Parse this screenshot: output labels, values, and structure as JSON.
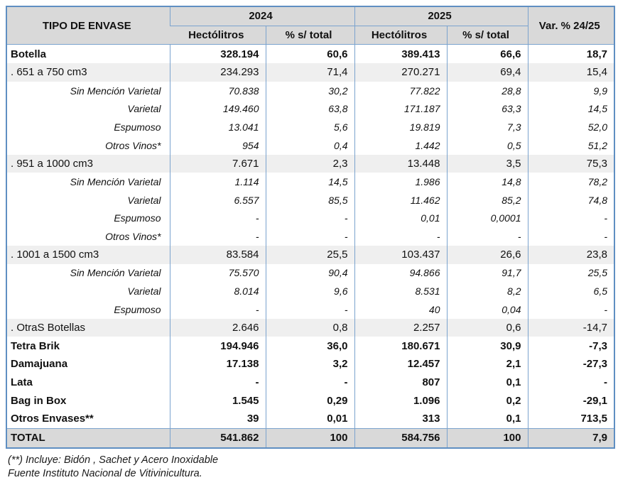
{
  "table": {
    "corner_header": "TIPO DE ENVASE",
    "year_groups": [
      {
        "label": "2024"
      },
      {
        "label": "2025"
      }
    ],
    "sub_headers": [
      "Hectólitros",
      "% s/ total"
    ],
    "var_header": "Var. %  24/25",
    "rows": [
      {
        "label": "Botella",
        "style": "main",
        "values": [
          "328.194",
          "60,6",
          "389.413",
          "66,6",
          "18,7"
        ]
      },
      {
        "label": ". 651 a 750 cm3",
        "style": "category",
        "values": [
          "234.293",
          "71,4",
          "270.271",
          "69,4",
          "15,4"
        ]
      },
      {
        "label": "Sin Mención Varietal",
        "style": "sub",
        "values": [
          "70.838",
          "30,2",
          "77.822",
          "28,8",
          "9,9"
        ]
      },
      {
        "label": "Varietal",
        "style": "sub",
        "values": [
          "149.460",
          "63,8",
          "171.187",
          "63,3",
          "14,5"
        ]
      },
      {
        "label": "Espumoso",
        "style": "sub",
        "values": [
          "13.041",
          "5,6",
          "19.819",
          "7,3",
          "52,0"
        ]
      },
      {
        "label": "Otros Vinos*",
        "style": "sub",
        "values": [
          "954",
          "0,4",
          "1.442",
          "0,5",
          "51,2"
        ]
      },
      {
        "label": ". 951 a 1000 cm3",
        "style": "category",
        "values": [
          "7.671",
          "2,3",
          "13.448",
          "3,5",
          "75,3"
        ]
      },
      {
        "label": "Sin Mención Varietal",
        "style": "sub",
        "values": [
          "1.114",
          "14,5",
          "1.986",
          "14,8",
          "78,2"
        ]
      },
      {
        "label": "Varietal",
        "style": "sub",
        "values": [
          "6.557",
          "85,5",
          "11.462",
          "85,2",
          "74,8"
        ]
      },
      {
        "label": "Espumoso",
        "style": "sub",
        "values": [
          "-",
          "-",
          "0,01",
          "0,0001",
          "-"
        ]
      },
      {
        "label": "Otros Vinos*",
        "style": "sub",
        "values": [
          "-",
          "-",
          "-",
          "-",
          "-"
        ]
      },
      {
        "label": ". 1001 a 1500 cm3",
        "style": "category",
        "values": [
          "83.584",
          "25,5",
          "103.437",
          "26,6",
          "23,8"
        ]
      },
      {
        "label": "Sin Mención Varietal",
        "style": "sub",
        "values": [
          "75.570",
          "90,4",
          "94.866",
          "91,7",
          "25,5"
        ]
      },
      {
        "label": "Varietal",
        "style": "sub",
        "values": [
          "8.014",
          "9,6",
          "8.531",
          "8,2",
          "6,5"
        ]
      },
      {
        "label": "Espumoso",
        "style": "sub",
        "values": [
          "-",
          "-",
          "40",
          "0,04",
          "-"
        ]
      },
      {
        "label": ". OtraS Botellas",
        "style": "category",
        "values": [
          "2.646",
          "0,8",
          "2.257",
          "0,6",
          "-14,7"
        ]
      },
      {
        "label": "Tetra Brik",
        "style": "main",
        "values": [
          "194.946",
          "36,0",
          "180.671",
          "30,9",
          "-7,3"
        ]
      },
      {
        "label": "Damajuana",
        "style": "main",
        "values": [
          "17.138",
          "3,2",
          "12.457",
          "2,1",
          "-27,3"
        ]
      },
      {
        "label": "Lata",
        "style": "main",
        "values": [
          "-",
          "-",
          "807",
          "0,1",
          "-"
        ]
      },
      {
        "label": "Bag in Box",
        "style": "main",
        "values": [
          "1.545",
          "0,29",
          "1.096",
          "0,2",
          "-29,1"
        ]
      },
      {
        "label": "Otros Envases**",
        "style": "main",
        "values": [
          "39",
          "0,01",
          "313",
          "0,1",
          "713,5"
        ]
      },
      {
        "label": "TOTAL",
        "style": "total",
        "values": [
          "541.862",
          "100",
          "584.756",
          "100",
          "7,9"
        ]
      }
    ]
  },
  "footnotes": [
    "(**) Incluye: Bidón , Sachet y Acero Inoxidable",
    "Fuente Instituto Nacional de Vitivinicultura."
  ],
  "colors": {
    "border_inner": "#7ba3ce",
    "border_outer": "#5f8fc2",
    "header_bg": "#d9d9d9",
    "category_row_bg": "#efefef",
    "total_row_bg": "#d9d9d9"
  }
}
